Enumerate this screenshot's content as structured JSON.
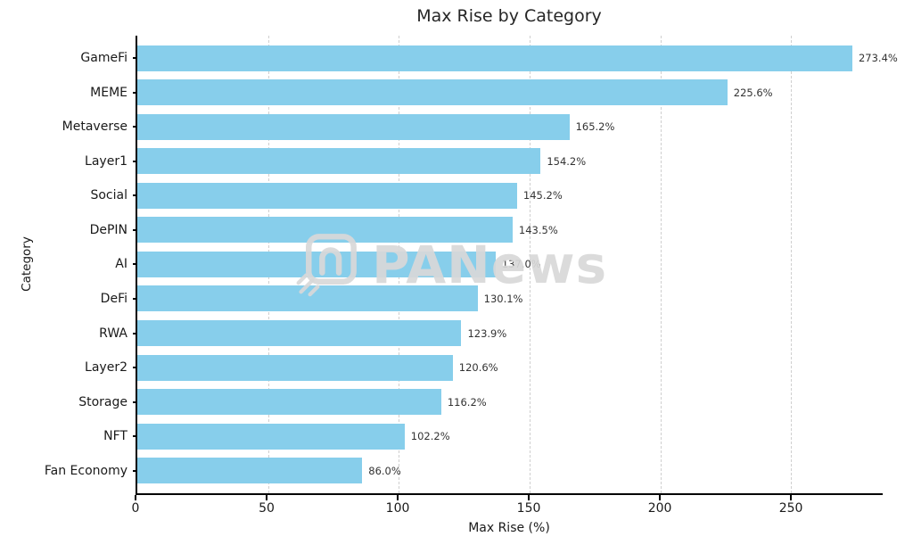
{
  "chart_data": {
    "type": "bar",
    "orientation": "horizontal",
    "title": "Max Rise by Category",
    "xlabel": "Max Rise (%)",
    "ylabel": "Category",
    "categories": [
      "GameFi",
      "MEME",
      "Metaverse",
      "Layer1",
      "Social",
      "DePIN",
      "AI",
      "DeFi",
      "RWA",
      "Layer2",
      "Storage",
      "NFT",
      "Fan Economy"
    ],
    "values": [
      273.4,
      225.6,
      165.2,
      154.2,
      145.2,
      143.5,
      137.0,
      130.1,
      123.9,
      120.6,
      116.2,
      102.2,
      86.0
    ],
    "value_labels": [
      "273.4%",
      "225.6%",
      "165.2%",
      "154.2%",
      "145.2%",
      "143.5%",
      "137.0%",
      "130.1%",
      "123.9%",
      "120.6%",
      "116.2%",
      "102.2%",
      "86.0%"
    ],
    "xlim": [
      0,
      285
    ],
    "xticks": [
      0,
      50,
      100,
      150,
      200,
      250
    ],
    "bar_color": "#87CEEB",
    "grid": "vertical-dashed",
    "legend": "none",
    "watermark": "PANews"
  }
}
